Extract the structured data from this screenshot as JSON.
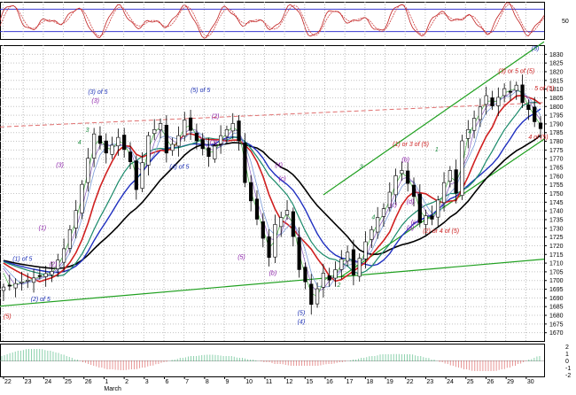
{
  "chart_data": {
    "type": "candlestick",
    "title": "",
    "xlabel": "",
    "ylabel": "",
    "grid": true,
    "x_tick_labels": [
      "22",
      "23",
      "24",
      "25",
      "26",
      "1",
      "2",
      "3",
      "6",
      "7",
      "8",
      "9",
      "10",
      "11",
      "12",
      "15",
      "16",
      "17",
      "18",
      "19",
      "22",
      "23",
      "24",
      "25",
      "26",
      "29",
      "30"
    ],
    "x_month_label": "March",
    "y_ticks": [
      1670,
      1675,
      1680,
      1685,
      1690,
      1695,
      1700,
      1705,
      1710,
      1715,
      1720,
      1725,
      1730,
      1735,
      1740,
      1745,
      1750,
      1755,
      1760,
      1765,
      1770,
      1775,
      1780,
      1785,
      1790,
      1795,
      1800,
      1805,
      1810,
      1815,
      1820,
      1825,
      1830
    ],
    "ylim": [
      1665,
      1835
    ],
    "oscillator_top": {
      "ticks": [
        "50"
      ],
      "levels": [
        80,
        20
      ]
    },
    "oscillator_bottom": {
      "ticks": [
        "2",
        "1",
        "0",
        "-1",
        "-2"
      ]
    },
    "price_path": [
      [
        0,
        1696
      ],
      [
        4,
        1700
      ],
      [
        8,
        1705
      ],
      [
        10,
        1718
      ],
      [
        12,
        1740
      ],
      [
        14,
        1770
      ],
      [
        15,
        1784
      ],
      [
        17,
        1773
      ],
      [
        19,
        1782
      ],
      [
        21,
        1768
      ],
      [
        22,
        1752
      ],
      [
        24,
        1783
      ],
      [
        26,
        1790
      ],
      [
        27,
        1773
      ],
      [
        29,
        1783
      ],
      [
        30,
        1792
      ],
      [
        32,
        1780
      ],
      [
        34,
        1771
      ],
      [
        36,
        1783
      ],
      [
        38,
        1790
      ],
      [
        39,
        1780
      ],
      [
        40,
        1756
      ],
      [
        42,
        1735
      ],
      [
        44,
        1713
      ],
      [
        45,
        1732
      ],
      [
        47,
        1740
      ],
      [
        48,
        1725
      ],
      [
        49,
        1706
      ],
      [
        50,
        1699
      ],
      [
        51,
        1686
      ],
      [
        52,
        1695
      ],
      [
        53,
        1704
      ],
      [
        54,
        1700
      ],
      [
        56,
        1712
      ],
      [
        57,
        1716
      ],
      [
        58,
        1703
      ],
      [
        60,
        1722
      ],
      [
        62,
        1736
      ],
      [
        63,
        1741
      ],
      [
        65,
        1760
      ],
      [
        66,
        1763
      ],
      [
        68,
        1748
      ],
      [
        69,
        1733
      ],
      [
        70,
        1737
      ],
      [
        71,
        1735
      ],
      [
        72,
        1746
      ],
      [
        73,
        1756
      ],
      [
        74,
        1763
      ],
      [
        75,
        1750
      ],
      [
        76,
        1780
      ],
      [
        78,
        1793
      ],
      [
        80,
        1806
      ],
      [
        81,
        1800
      ],
      [
        83,
        1810
      ],
      [
        84,
        1808
      ],
      [
        85,
        1812
      ],
      [
        86,
        1802
      ],
      [
        87,
        1798
      ],
      [
        88,
        1791
      ],
      [
        89,
        1787
      ]
    ],
    "annotations": [
      {
        "text": "(5)",
        "x": 87.5,
        "y": 1832,
        "color": "#1f33b8"
      },
      {
        "text": "(3) or 5 of (5)",
        "x": 82,
        "y": 1819,
        "color": "#cc1d1d"
      },
      {
        "text": "5 of (5)",
        "x": 88,
        "y": 1809,
        "color": "#cc1d1d"
      },
      {
        "text": "4 of (5)",
        "x": 87,
        "y": 1781,
        "color": "#cc1d1d"
      },
      {
        "text": "(3) of 5",
        "x": 14,
        "y": 1807,
        "color": "#1f33b8"
      },
      {
        "text": "(3)",
        "x": 14.6,
        "y": 1802,
        "color": "#8a1da8"
      },
      {
        "text": "(5) of 5",
        "x": 31,
        "y": 1808,
        "color": "#1f33b8"
      },
      {
        "text": "3",
        "x": 13.6,
        "y": 1785,
        "color": "#1a8a3d"
      },
      {
        "text": "4",
        "x": 12.3,
        "y": 1778,
        "color": "#1a8a3d"
      },
      {
        "text": "(3)",
        "x": 8.7,
        "y": 1765,
        "color": "#8a1da8"
      },
      {
        "text": "(4) of 5",
        "x": 27.5,
        "y": 1764,
        "color": "#1f33b8"
      },
      {
        "text": "(1)",
        "x": 5.8,
        "y": 1729,
        "color": "#8a1da8"
      },
      {
        "text": "(1) of 5",
        "x": 1.5,
        "y": 1711,
        "color": "#1f33b8"
      },
      {
        "text": "(2)",
        "x": 7.6,
        "y": 1708,
        "color": "#8a1da8"
      },
      {
        "text": "(2) of 5",
        "x": 4.5,
        "y": 1688,
        "color": "#1f33b8"
      },
      {
        "text": "(5)",
        "x": 0,
        "y": 1678,
        "color": "#cc1d1d"
      },
      {
        "text": "(2)",
        "x": 34.5,
        "y": 1793,
        "color": "#8a1da8"
      },
      {
        "text": "(3)",
        "x": 34.2,
        "y": 1778,
        "color": "#8a1da8"
      },
      {
        "text": "(4)",
        "x": 45,
        "y": 1765,
        "color": "#8a1da8"
      },
      {
        "text": "(c)",
        "x": 45.6,
        "y": 1757,
        "color": "#8a1da8"
      },
      {
        "text": "(5)",
        "x": 38.8,
        "y": 1712,
        "color": "#8a1da8"
      },
      {
        "text": "(b)",
        "x": 44,
        "y": 1703,
        "color": "#8a1da8"
      },
      {
        "text": "(5)",
        "x": 48.7,
        "y": 1680,
        "color": "#1f33b8"
      },
      {
        "text": "(4)",
        "x": 48.7,
        "y": 1675,
        "color": "#1f33b8"
      },
      {
        "text": "(1) or 3 of (5)",
        "x": 64.5,
        "y": 1777,
        "color": "#cc1d1d"
      },
      {
        "text": "(b)",
        "x": 66,
        "y": 1768,
        "color": "#8a1da8"
      },
      {
        "text": "3",
        "x": 59,
        "y": 1764,
        "color": "#1a8a3d"
      },
      {
        "text": "(c)",
        "x": 64,
        "y": 1742,
        "color": "#8a1da8"
      },
      {
        "text": "(d)",
        "x": 66.8,
        "y": 1744,
        "color": "#8a1da8"
      },
      {
        "text": "4",
        "x": 61,
        "y": 1735,
        "color": "#1a8a3d"
      },
      {
        "text": "(e)",
        "x": 67.5,
        "y": 1732,
        "color": "#8a1da8"
      },
      {
        "text": "(a)",
        "x": 66.8,
        "y": 1729,
        "color": "#8a1da8"
      },
      {
        "text": "(2) or 4 of (5)",
        "x": 69.5,
        "y": 1727,
        "color": "#cc1d1d"
      },
      {
        "text": "1",
        "x": 71.5,
        "y": 1774,
        "color": "#1a8a3d"
      },
      {
        "text": "2",
        "x": 55.3,
        "y": 1696,
        "color": "#1a8a3d"
      },
      {
        "text": "4",
        "x": 77,
        "y": 1784,
        "color": "#1a8a3d"
      }
    ]
  }
}
